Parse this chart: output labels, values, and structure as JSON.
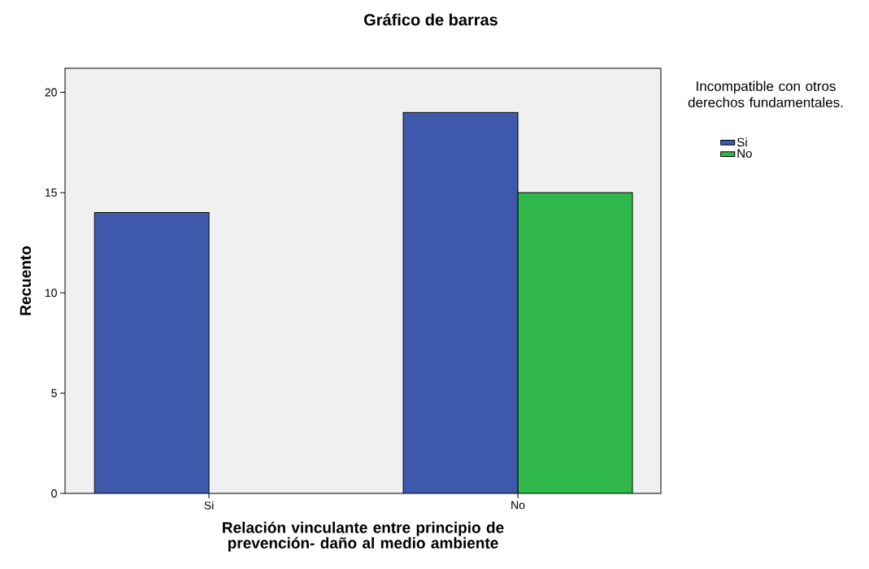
{
  "chart_data": {
    "type": "bar",
    "title": "Gráfico de barras",
    "xlabel": "Relación vinculante entre principio de prevención- daño al medio ambiente",
    "ylabel": "Recuento",
    "legend_title": "Incompatible con otros derechos fundamentales.",
    "categories": [
      "Si",
      "No"
    ],
    "series": [
      {
        "name": "Si",
        "color": "#3e58ac",
        "values": [
          14,
          19
        ]
      },
      {
        "name": "No",
        "color": "#2fb74a",
        "values": [
          null,
          15
        ]
      }
    ],
    "ylim": [
      0,
      21.2
    ],
    "yticks": [
      0,
      5,
      10,
      15,
      20
    ],
    "legend": "top right",
    "grid": false
  }
}
